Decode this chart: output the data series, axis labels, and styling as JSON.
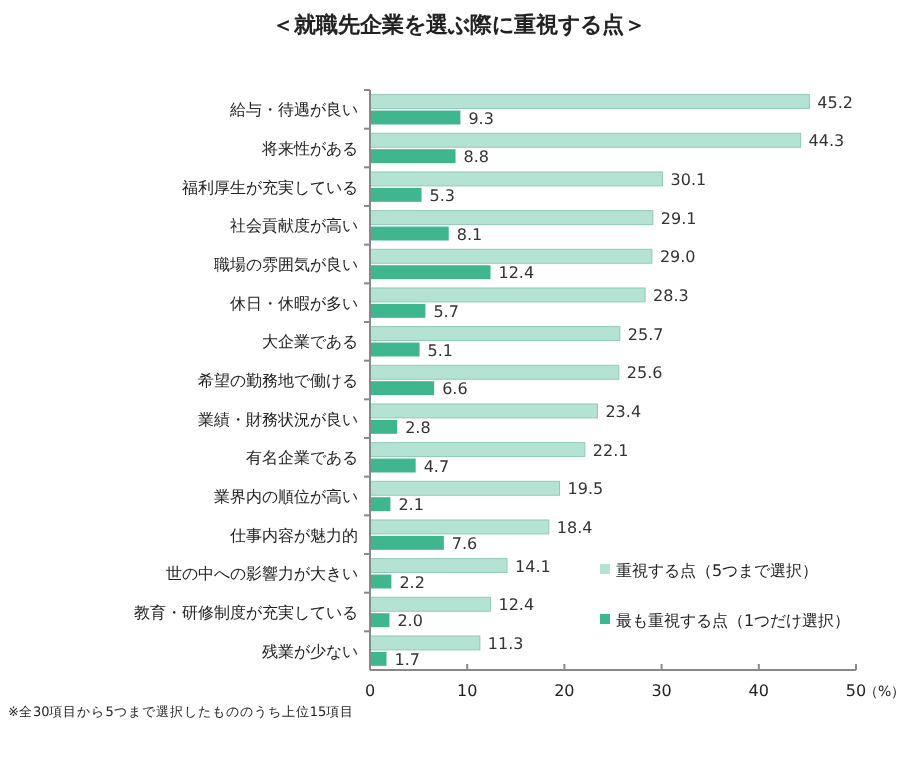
{
  "chart_data": {
    "type": "bar",
    "orientation": "horizontal",
    "title": "＜就職先企業を選ぶ際に重視する点＞",
    "xlabel": "（%）",
    "categories": [
      "給与・待遇が良い",
      "将来性がある",
      "福利厚生が充実している",
      "社会貢献度が高い",
      "職場の雰囲気が良い",
      "休日・休暇が多い",
      "大企業である",
      "希望の勤務地で働ける",
      "業績・財務状況が良い",
      "有名企業である",
      "業界内の順位が高い",
      "仕事内容が魅力的",
      "世の中への影響力が大きい",
      "教育・研修制度が充実している",
      "残業が少ない"
    ],
    "series": [
      {
        "name": "重視する点（5つまで選択）",
        "color": "#b5e3d3",
        "values": [
          45.2,
          44.3,
          30.1,
          29.1,
          29.0,
          28.3,
          25.7,
          25.6,
          23.4,
          22.1,
          19.5,
          18.4,
          14.1,
          12.4,
          11.3
        ],
        "value_labels": [
          "45.2",
          "44.3",
          "30.1",
          "29.1",
          "29.0",
          "28.3",
          "25.7",
          "25.6",
          "23.4",
          "22.1",
          "19.5",
          "18.4",
          "14.1",
          "12.4",
          "11.3"
        ]
      },
      {
        "name": "最も重視する点（1つだけ選択）",
        "color": "#3fb68e",
        "values": [
          9.3,
          8.8,
          5.3,
          8.1,
          12.4,
          5.7,
          5.1,
          6.6,
          2.8,
          4.7,
          2.1,
          7.6,
          2.2,
          2.0,
          1.7
        ],
        "value_labels": [
          "9.3",
          "8.8",
          "5.3",
          "8.1",
          "12.4",
          "5.7",
          "5.1",
          "6.6",
          "2.8",
          "4.7",
          "2.1",
          "7.6",
          "2.2",
          "2.0",
          "1.7"
        ]
      }
    ],
    "xlim": [
      0,
      50
    ],
    "xticks": [
      0,
      10,
      20,
      30,
      40,
      50
    ],
    "legend": "bottom right",
    "grid": false,
    "annotations": [
      "※全30項目から5つまで選択したもののうち上位15項目"
    ]
  }
}
